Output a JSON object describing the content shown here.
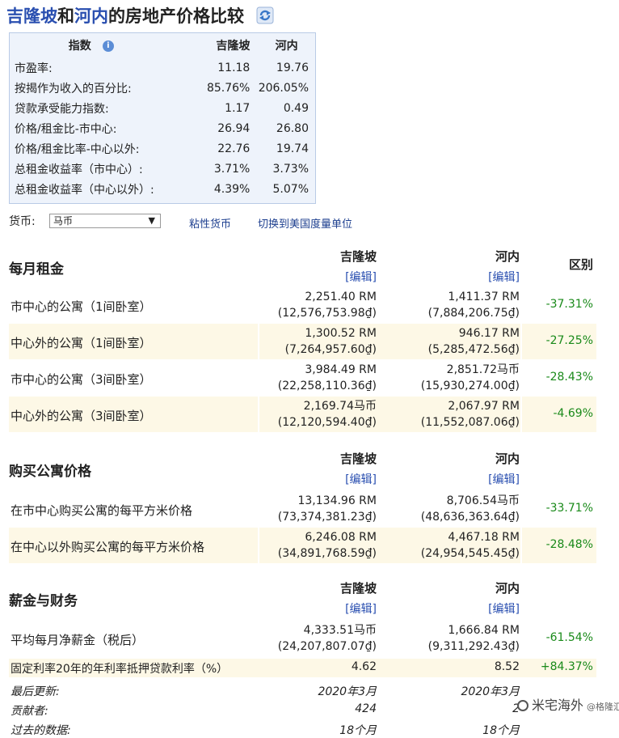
{
  "title": {
    "city1": "吉隆坡",
    "and": "和",
    "city2": "河内",
    "suffix": "的房地产价格比较"
  },
  "indices": {
    "header": {
      "label": "指数",
      "col1": "吉隆坡",
      "col2": "河内"
    },
    "rows": [
      {
        "label": "市盈率:",
        "v1": "11.18",
        "v2": "19.76"
      },
      {
        "label": "按揭作为收入的百分比:",
        "v1": "85.76%",
        "v2": "206.05%"
      },
      {
        "label": "贷款承受能力指数:",
        "v1": "1.17",
        "v2": "0.49"
      },
      {
        "label": "价格/租金比-市中心:",
        "v1": "26.94",
        "v2": "26.80"
      },
      {
        "label": "价格/租金比率-中心以外:",
        "v1": "22.76",
        "v2": "19.74"
      },
      {
        "label": "总租金收益率（市中心）:",
        "v1": "3.71%",
        "v2": "3.73%"
      },
      {
        "label": "总租金收益率（中心以外）:",
        "v1": "4.39%",
        "v2": "5.07%"
      }
    ]
  },
  "currency": {
    "label": "货币:",
    "selected": "马币",
    "link1": "粘性货币",
    "link2": "切换到美国度量单位"
  },
  "columns": {
    "col1": "吉隆坡",
    "col2": "河内",
    "diff": "区别",
    "edit": "[编辑]"
  },
  "rent": {
    "title": "每月租金",
    "rows": [
      {
        "label": "市中心的公寓（1间卧室）",
        "v1": "2,251.40 RM",
        "v1b": "(12,576,753.98₫)",
        "v2": "1,411.37 RM",
        "v2b": "(7,884,206.75₫)",
        "diff": "-37.31%"
      },
      {
        "label": "中心外的公寓（1间卧室）",
        "v1": "1,300.52 RM",
        "v1b": "(7,264,957.60₫)",
        "v2": "946.17 RM",
        "v2b": "(5,285,472.56₫)",
        "diff": "-27.25%"
      },
      {
        "label": "市中心的公寓（3间卧室）",
        "v1": "3,984.49 RM",
        "v1b": "(22,258,110.36₫)",
        "v2": "2,851.72马币",
        "v2b": "(15,930,274.00₫)",
        "diff": "-28.43%"
      },
      {
        "label": "中心外的公寓（3间卧室）",
        "v1": "2,169.74马币",
        "v1b": "(12,120,594.40₫)",
        "v2": "2,067.97 RM",
        "v2b": "(11,552,087.06₫)",
        "diff": "-4.69%"
      }
    ]
  },
  "buy": {
    "title": "购买公寓价格",
    "rows": [
      {
        "label": "在市中心购买公寓的每平方米价格",
        "v1": "13,134.96 RM",
        "v1b": "(73,374,381.23₫)",
        "v2": "8,706.54马币",
        "v2b": "(48,636,363.64₫)",
        "diff": "-33.71%"
      },
      {
        "label": "在中心以外购买公寓的每平方米价格",
        "v1": "6,246.08 RM",
        "v1b": "(34,891,768.59₫)",
        "v2": "4,467.18 RM",
        "v2b": "(24,954,545.45₫)",
        "diff": "-28.48%"
      }
    ]
  },
  "salary": {
    "title": "薪金与财务",
    "rows": [
      {
        "label": "平均每月净薪金（税后）",
        "v1": "4,333.51马币",
        "v1b": "(24,207,807.07₫)",
        "v2": "1,666.84 RM",
        "v2b": "(9,311,292.43₫)",
        "diff": "-61.54%"
      }
    ],
    "mortgage": {
      "label": "固定利率20年的年利率抵押贷款利率（%）",
      "v1": "4.62",
      "v2": "8.52",
      "diff": "+84.37%"
    }
  },
  "meta": {
    "updated": {
      "label": "最后更新:",
      "v1": "2020年3月",
      "v2": "2020年3月"
    },
    "contributors": {
      "label": "贡献者:",
      "v1": "424",
      "v2": "2"
    },
    "past": {
      "label": "过去的数据:",
      "v1": "18个月",
      "v2": "18个月"
    }
  },
  "watermark": {
    "main": "米宅海外",
    "sub": "@格隆汇"
  }
}
